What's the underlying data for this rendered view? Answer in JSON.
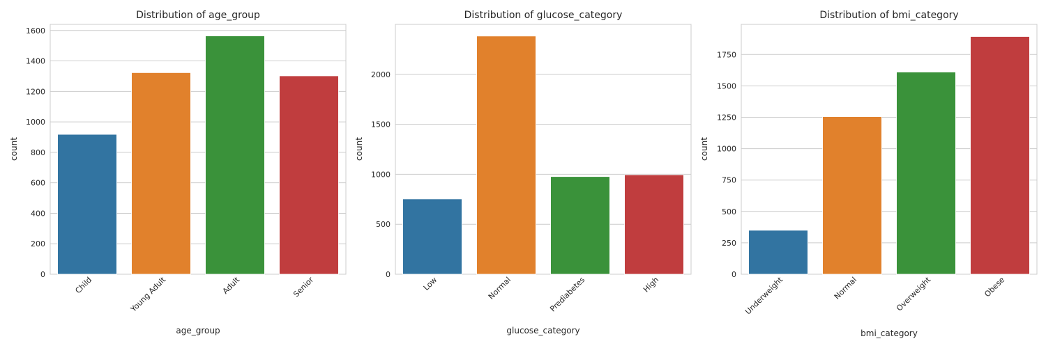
{
  "chart_data": [
    {
      "type": "bar",
      "title": "Distribution of age_group",
      "xlabel": "age_group",
      "ylabel": "count",
      "categories": [
        "Child",
        "Young Adult",
        "Adult",
        "Senior"
      ],
      "values": [
        918,
        1323,
        1564,
        1302
      ],
      "ylim": [
        0,
        1640
      ],
      "yticks": [
        0,
        200,
        400,
        600,
        800,
        1000,
        1200,
        1400,
        1600
      ],
      "colors": [
        "#3274a1",
        "#e1812c",
        "#3a923a",
        "#c03d3e"
      ],
      "grid": "y"
    },
    {
      "type": "bar",
      "title": "Distribution of glucose_category",
      "xlabel": "glucose_category",
      "ylabel": "count",
      "categories": [
        "Low",
        "Normal",
        "Prediabetes",
        "High"
      ],
      "values": [
        753,
        2383,
        977,
        995
      ],
      "ylim": [
        0,
        2500
      ],
      "yticks": [
        0,
        500,
        1000,
        1500,
        2000
      ],
      "colors": [
        "#3274a1",
        "#e1812c",
        "#3a923a",
        "#c03d3e"
      ],
      "grid": "y"
    },
    {
      "type": "bar",
      "title": "Distribution of bmi_category",
      "xlabel": "bmi_category",
      "ylabel": "count",
      "categories": [
        "Underweight",
        "Normal",
        "Overweight",
        "Obese"
      ],
      "values": [
        350,
        1255,
        1610,
        1893
      ],
      "ylim": [
        0,
        1990
      ],
      "yticks": [
        0,
        250,
        500,
        750,
        1000,
        1250,
        1500,
        1750
      ],
      "colors": [
        "#3274a1",
        "#e1812c",
        "#3a923a",
        "#c03d3e"
      ],
      "grid": "y"
    }
  ]
}
